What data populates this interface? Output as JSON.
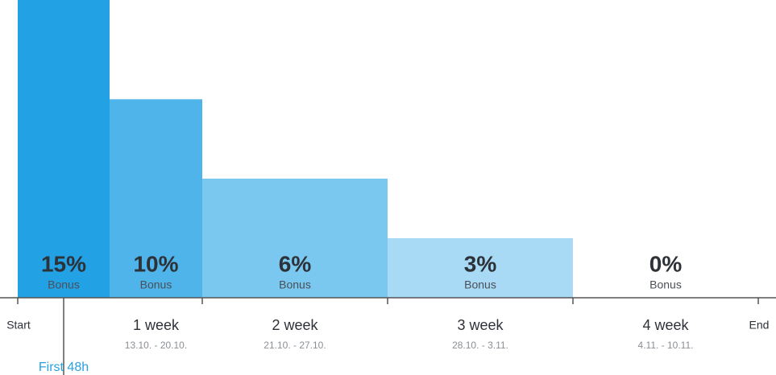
{
  "chart_data": {
    "type": "bar",
    "categories": [
      "First 48h",
      "1 week",
      "2 week",
      "3 week",
      "4 week"
    ],
    "dates": [
      null,
      "13.10. - 20.10.",
      "21.10. - 27.10.",
      "28.10. - 3.11.",
      "4.11. - 10.11."
    ],
    "values": [
      15,
      10,
      6,
      3,
      0
    ],
    "value_labels": [
      "15%",
      "10%",
      "6%",
      "3%",
      "0%"
    ],
    "value_caption": "Bonus",
    "colors": [
      "#22a1e4",
      "#4fb4ea",
      "#7ac7f0",
      "#a8daf5",
      "#d2edfb"
    ],
    "marker_color": "#2aa0e0",
    "start_label": "Start",
    "end_label": "End",
    "ylim": [
      0,
      15
    ]
  }
}
